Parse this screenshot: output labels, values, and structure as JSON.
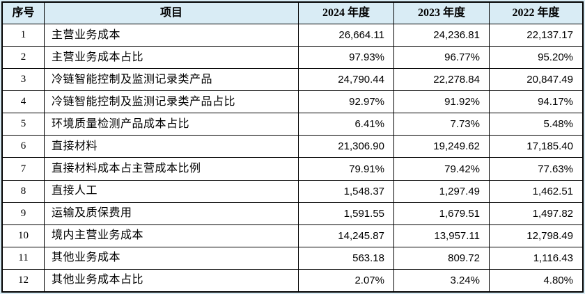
{
  "colors": {
    "header_bg": "#d9ecf5",
    "page_bg": "#d9ecf5",
    "border": "#000000"
  },
  "table": {
    "columns": [
      {
        "key": "no",
        "label": "序号"
      },
      {
        "key": "item",
        "label": "项目"
      },
      {
        "key": "y2024",
        "label": "2024 年度"
      },
      {
        "key": "y2023",
        "label": "2023 年度"
      },
      {
        "key": "y2022",
        "label": "2022 年度"
      }
    ],
    "rows": [
      {
        "no": "1",
        "item": "主营业务成本",
        "y2024": "26,664.11",
        "y2023": "24,236.81",
        "y2022": "22,137.17"
      },
      {
        "no": "2",
        "item": "主营业务成本占比",
        "y2024": "97.93%",
        "y2023": "96.77%",
        "y2022": "95.20%"
      },
      {
        "no": "3",
        "item": "冷链智能控制及监测记录类产品",
        "y2024": "24,790.44",
        "y2023": "22,278.84",
        "y2022": "20,847.49"
      },
      {
        "no": "4",
        "item": "冷链智能控制及监测记录类产品占比",
        "y2024": "92.97%",
        "y2023": "91.92%",
        "y2022": "94.17%"
      },
      {
        "no": "5",
        "item": "环境质量检测产品成本占比",
        "y2024": "6.41%",
        "y2023": "7.73%",
        "y2022": "5.48%"
      },
      {
        "no": "6",
        "item": "直接材料",
        "y2024": "21,306.90",
        "y2023": "19,249.62",
        "y2022": "17,185.40"
      },
      {
        "no": "7",
        "item": "直接材料成本占主营成本比例",
        "y2024": "79.91%",
        "y2023": "79.42%",
        "y2022": "77.63%"
      },
      {
        "no": "8",
        "item": "直接人工",
        "y2024": "1,548.37",
        "y2023": "1,297.49",
        "y2022": "1,462.51"
      },
      {
        "no": "9",
        "item": "运输及质保费用",
        "y2024": "1,591.55",
        "y2023": "1,679.51",
        "y2022": "1,497.82"
      },
      {
        "no": "10",
        "item": "境内主营业务成本",
        "y2024": "14,245.87",
        "y2023": "13,957.11",
        "y2022": "12,798.49"
      },
      {
        "no": "11",
        "item": "其他业务成本",
        "y2024": "563.18",
        "y2023": "809.72",
        "y2022": "1,116.43"
      },
      {
        "no": "12",
        "item": "其他业务成本占比",
        "y2024": "2.07%",
        "y2023": "3.24%",
        "y2022": "4.80%"
      }
    ]
  }
}
